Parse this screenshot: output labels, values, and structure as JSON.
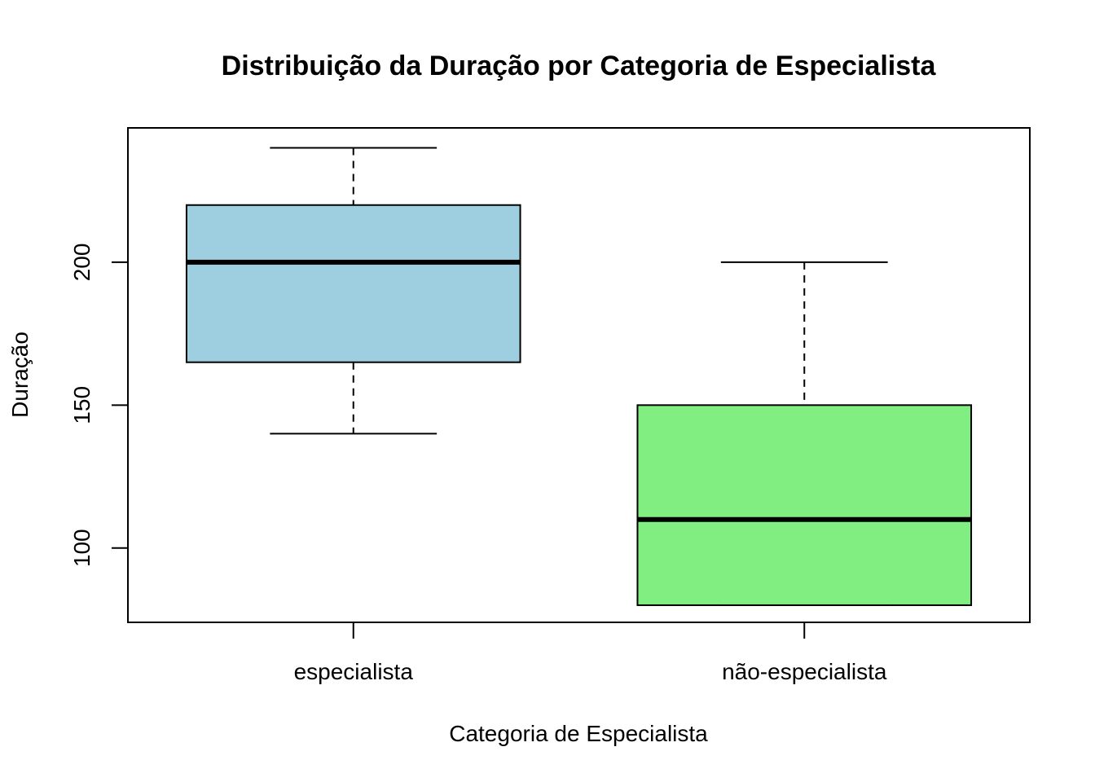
{
  "chart_data": {
    "type": "boxplot",
    "title": "Distribuição da Duração por Categoria de Especialista",
    "xlabel": "Categoria de Especialista",
    "ylabel": "Duração",
    "ylim": [
      74,
      247
    ],
    "yticks": [
      100,
      150,
      200
    ],
    "categories": [
      "especialista",
      "não-especialista"
    ],
    "boxes": [
      {
        "category": "especialista",
        "min": 140,
        "q1": 165,
        "median": 200,
        "q3": 220,
        "max": 240,
        "color": "#9ECFE0"
      },
      {
        "category": "não-especialista",
        "min": 80,
        "q1": 80,
        "median": 110,
        "q3": 150,
        "max": 200,
        "color": "#80EE80"
      }
    ],
    "grid": false,
    "legend": "none"
  }
}
